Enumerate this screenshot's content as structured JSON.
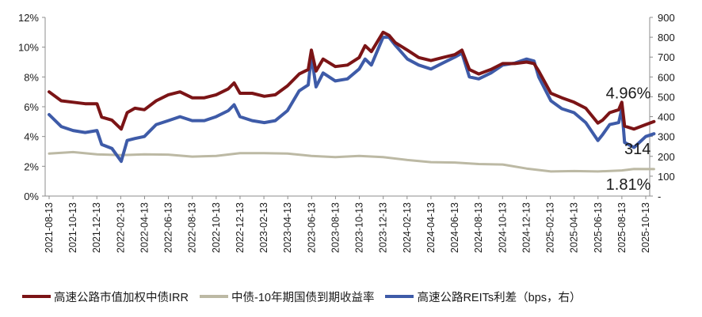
{
  "chart_data": {
    "type": "line",
    "x_ticks": [
      "2021-08-13",
      "2021-10-13",
      "2021-12-13",
      "2022-02-13",
      "2022-04-13",
      "2022-06-13",
      "2022-08-13",
      "2022-10-13",
      "2022-12-13",
      "2023-02-13",
      "2023-04-13",
      "2023-06-13",
      "2023-08-13",
      "2023-10-13",
      "2023-12-13",
      "2024-02-13",
      "2024-04-13",
      "2024-06-13",
      "2024-08-13",
      "2024-10-13",
      "2024-12-13",
      "2025-02-13",
      "2025-04-13",
      "2025-06-13",
      "2025-08-13",
      "2025-10-13"
    ],
    "y_left": {
      "min": 0,
      "max": 12,
      "step": 2,
      "tick_labels": [
        "0%",
        "2%",
        "4%",
        "6%",
        "8%",
        "10%",
        "12%"
      ]
    },
    "y_right": {
      "min": 0,
      "max": 900,
      "step": 100,
      "tick_labels": [
        "-",
        "100",
        "200",
        "300",
        "400",
        "500",
        "600",
        "700",
        "800",
        "900"
      ]
    },
    "series": [
      {
        "name": "高速公路市值加权中债IRR",
        "axis": "left",
        "color": "#7B1416",
        "points": [
          [
            "2021-08-13",
            7.0
          ],
          [
            "2021-09-13",
            6.4
          ],
          [
            "2021-10-13",
            6.3
          ],
          [
            "2021-11-13",
            6.2
          ],
          [
            "2021-12-13",
            6.2
          ],
          [
            "2021-12-25",
            5.3
          ],
          [
            "2022-01-20",
            5.1
          ],
          [
            "2022-02-13",
            4.5
          ],
          [
            "2022-02-28",
            5.6
          ],
          [
            "2022-03-20",
            5.9
          ],
          [
            "2022-04-13",
            5.8
          ],
          [
            "2022-05-13",
            6.4
          ],
          [
            "2022-06-13",
            6.8
          ],
          [
            "2022-07-13",
            7.0
          ],
          [
            "2022-08-13",
            6.6
          ],
          [
            "2022-09-13",
            6.6
          ],
          [
            "2022-10-13",
            6.8
          ],
          [
            "2022-11-13",
            7.2
          ],
          [
            "2022-11-28",
            7.6
          ],
          [
            "2022-12-13",
            6.9
          ],
          [
            "2023-01-13",
            6.9
          ],
          [
            "2023-02-13",
            6.7
          ],
          [
            "2023-03-13",
            6.8
          ],
          [
            "2023-04-13",
            7.4
          ],
          [
            "2023-05-13",
            8.2
          ],
          [
            "2023-06-05",
            8.5
          ],
          [
            "2023-06-13",
            9.8
          ],
          [
            "2023-06-25",
            8.4
          ],
          [
            "2023-07-13",
            9.2
          ],
          [
            "2023-08-13",
            8.7
          ],
          [
            "2023-09-13",
            8.8
          ],
          [
            "2023-10-13",
            9.3
          ],
          [
            "2023-10-28",
            10.1
          ],
          [
            "2023-11-13",
            9.7
          ],
          [
            "2023-12-13",
            11.0
          ],
          [
            "2023-12-28",
            10.8
          ],
          [
            "2024-01-13",
            10.3
          ],
          [
            "2024-02-13",
            9.8
          ],
          [
            "2024-03-13",
            9.3
          ],
          [
            "2024-04-13",
            9.1
          ],
          [
            "2024-05-13",
            9.3
          ],
          [
            "2024-06-13",
            9.5
          ],
          [
            "2024-07-01",
            9.8
          ],
          [
            "2024-07-20",
            8.5
          ],
          [
            "2024-08-13",
            8.2
          ],
          [
            "2024-09-13",
            8.5
          ],
          [
            "2024-10-13",
            8.9
          ],
          [
            "2024-11-13",
            8.9
          ],
          [
            "2024-12-13",
            9.0
          ],
          [
            "2025-01-01",
            8.9
          ],
          [
            "2025-01-13",
            8.4
          ],
          [
            "2025-02-13",
            6.9
          ],
          [
            "2025-03-13",
            6.6
          ],
          [
            "2025-04-13",
            6.3
          ],
          [
            "2025-05-13",
            5.9
          ],
          [
            "2025-06-13",
            4.9
          ],
          [
            "2025-06-25",
            5.1
          ],
          [
            "2025-07-13",
            5.6
          ],
          [
            "2025-08-05",
            5.8
          ],
          [
            "2025-08-13",
            6.3
          ],
          [
            "2025-08-20",
            4.7
          ],
          [
            "2025-09-13",
            4.5
          ],
          [
            "2025-10-13",
            4.8
          ],
          [
            "2025-11-03",
            5.0
          ]
        ]
      },
      {
        "name": "中债-10年期国债到期收益率",
        "axis": "left",
        "color": "#BCB9A4",
        "points": [
          [
            "2021-08-13",
            2.85
          ],
          [
            "2021-10-13",
            2.95
          ],
          [
            "2021-12-13",
            2.8
          ],
          [
            "2022-02-13",
            2.75
          ],
          [
            "2022-04-13",
            2.8
          ],
          [
            "2022-06-13",
            2.78
          ],
          [
            "2022-08-13",
            2.65
          ],
          [
            "2022-10-13",
            2.7
          ],
          [
            "2022-12-13",
            2.88
          ],
          [
            "2023-02-13",
            2.88
          ],
          [
            "2023-04-13",
            2.85
          ],
          [
            "2023-06-13",
            2.7
          ],
          [
            "2023-08-13",
            2.62
          ],
          [
            "2023-10-13",
            2.7
          ],
          [
            "2023-12-13",
            2.62
          ],
          [
            "2024-02-13",
            2.42
          ],
          [
            "2024-04-13",
            2.28
          ],
          [
            "2024-06-13",
            2.25
          ],
          [
            "2024-08-13",
            2.15
          ],
          [
            "2024-10-13",
            2.12
          ],
          [
            "2024-12-13",
            1.85
          ],
          [
            "2025-02-13",
            1.65
          ],
          [
            "2025-04-13",
            1.68
          ],
          [
            "2025-06-13",
            1.65
          ],
          [
            "2025-08-13",
            1.72
          ],
          [
            "2025-09-13",
            1.82
          ],
          [
            "2025-11-03",
            1.81
          ]
        ]
      },
      {
        "name": "高速公路REITs利差（bps，右）",
        "axis": "right",
        "color": "#3E5BA8",
        "points": [
          [
            "2021-08-13",
            410
          ],
          [
            "2021-09-13",
            350
          ],
          [
            "2021-10-13",
            330
          ],
          [
            "2021-11-13",
            320
          ],
          [
            "2021-12-13",
            330
          ],
          [
            "2021-12-25",
            260
          ],
          [
            "2022-01-20",
            240
          ],
          [
            "2022-02-13",
            175
          ],
          [
            "2022-02-28",
            280
          ],
          [
            "2022-03-20",
            290
          ],
          [
            "2022-04-13",
            300
          ],
          [
            "2022-05-13",
            360
          ],
          [
            "2022-06-13",
            380
          ],
          [
            "2022-07-13",
            400
          ],
          [
            "2022-08-13",
            380
          ],
          [
            "2022-09-13",
            380
          ],
          [
            "2022-10-13",
            400
          ],
          [
            "2022-11-13",
            430
          ],
          [
            "2022-11-28",
            460
          ],
          [
            "2022-12-13",
            400
          ],
          [
            "2023-01-13",
            380
          ],
          [
            "2023-02-13",
            370
          ],
          [
            "2023-03-13",
            380
          ],
          [
            "2023-04-13",
            430
          ],
          [
            "2023-05-13",
            530
          ],
          [
            "2023-06-05",
            560
          ],
          [
            "2023-06-13",
            705
          ],
          [
            "2023-06-25",
            550
          ],
          [
            "2023-07-13",
            620
          ],
          [
            "2023-08-13",
            580
          ],
          [
            "2023-09-13",
            590
          ],
          [
            "2023-10-13",
            640
          ],
          [
            "2023-10-28",
            690
          ],
          [
            "2023-11-13",
            660
          ],
          [
            "2023-12-13",
            800
          ],
          [
            "2023-12-28",
            800
          ],
          [
            "2024-01-13",
            760
          ],
          [
            "2024-02-13",
            690
          ],
          [
            "2024-03-13",
            660
          ],
          [
            "2024-04-13",
            640
          ],
          [
            "2024-05-13",
            670
          ],
          [
            "2024-06-13",
            700
          ],
          [
            "2024-07-01",
            720
          ],
          [
            "2024-07-20",
            600
          ],
          [
            "2024-08-13",
            590
          ],
          [
            "2024-09-13",
            620
          ],
          [
            "2024-10-13",
            660
          ],
          [
            "2024-11-13",
            670
          ],
          [
            "2024-12-13",
            690
          ],
          [
            "2025-01-01",
            680
          ],
          [
            "2025-01-13",
            600
          ],
          [
            "2025-02-13",
            480
          ],
          [
            "2025-03-13",
            440
          ],
          [
            "2025-04-13",
            420
          ],
          [
            "2025-05-13",
            370
          ],
          [
            "2025-06-13",
            280
          ],
          [
            "2025-06-25",
            310
          ],
          [
            "2025-07-13",
            360
          ],
          [
            "2025-08-05",
            370
          ],
          [
            "2025-08-13",
            440
          ],
          [
            "2025-08-20",
            270
          ],
          [
            "2025-09-13",
            245
          ],
          [
            "2025-10-13",
            300
          ],
          [
            "2025-11-03",
            314
          ]
        ]
      }
    ],
    "annotations": [
      {
        "text": "4.96%",
        "x": "2025-11-03",
        "axis": "left",
        "value": 4.96,
        "position": "above"
      },
      {
        "text": "314",
        "x": "2025-11-03",
        "axis": "right",
        "value": 314,
        "position": "below"
      },
      {
        "text": "1.81%",
        "x": "2025-11-03",
        "axis": "left",
        "value": 1.81,
        "position": "below"
      }
    ],
    "legend": {
      "position": "bottom"
    },
    "grid": false
  }
}
